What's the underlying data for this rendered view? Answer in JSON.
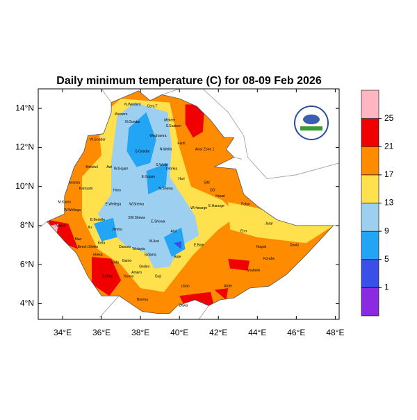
{
  "title": "Daily minimum temperature (C) for 08-09 Feb 2026",
  "map": {
    "xlim": [
      32.75,
      48.2
    ],
    "ylim": [
      3.2,
      15
    ],
    "xticks": [
      {
        "value": 34,
        "label": "34°E"
      },
      {
        "value": 36,
        "label": "36°E"
      },
      {
        "value": 38,
        "label": "38°E"
      },
      {
        "value": 40,
        "label": "40°E"
      },
      {
        "value": 42,
        "label": "42°E"
      },
      {
        "value": 44,
        "label": "44°E"
      },
      {
        "value": 46,
        "label": "46°E"
      },
      {
        "value": 48,
        "label": "48°E"
      }
    ],
    "yticks": [
      {
        "value": 4,
        "label": "4°N"
      },
      {
        "value": 6,
        "label": "6°N"
      },
      {
        "value": 8,
        "label": "8°N"
      },
      {
        "value": 10,
        "label": "10°N"
      },
      {
        "value": 12,
        "label": "12°N"
      },
      {
        "value": 14,
        "label": "14°N"
      }
    ],
    "region_labels": [
      "Western",
      "N.Western",
      "Cent.T",
      "Mekele",
      "S.Eastern",
      "N.Gondar",
      "Waghamra",
      "N.Wello",
      "Fanti",
      "Awsi Zone 1",
      "W.Gondar",
      "S.Gondar",
      "S.Wello",
      "Metekel",
      "Awi",
      "W.Gojam",
      "E.Gojam",
      "Oromia",
      "Hari",
      "Sitti",
      "DD",
      "Harari",
      "Fafan",
      "Kamashi",
      "Assosa",
      "Horo",
      "N.Shewa",
      "M.Kumo",
      "W.Wellega",
      "E.Wellega",
      "W.Shewa",
      "W.Hararge",
      "E.Hararge",
      "Jarar",
      "B.Bedelle",
      "SW.Shewa",
      "E.Shewa",
      "Nuwer",
      "Ilu",
      "Jimma",
      "Arsi",
      "Erer",
      "Mao",
      "Kefa",
      "W.Arsi",
      "E.Bale",
      "Nogob",
      "Doolo",
      "Bench Sheko",
      "Dawuro",
      "Wolayta",
      "Sidama",
      "Bale",
      "Korahe",
      "Sheka",
      "Gofa",
      "Gamo",
      "Gedeo",
      "Shabelle",
      "S.Omo",
      "Konso",
      "Amaro",
      "Guji",
      "Liban",
      "Afder",
      "Borena",
      "Dawa"
    ]
  },
  "colorbar": {
    "levels": [
      1,
      5,
      9,
      13,
      17,
      21,
      25
    ],
    "colors": [
      "#8a2be2",
      "#3a4ee8",
      "#22a5f5",
      "#9dcff0",
      "#ffe14d",
      "#ff8c00",
      "#f00000",
      "#ffb6c1"
    ]
  }
}
